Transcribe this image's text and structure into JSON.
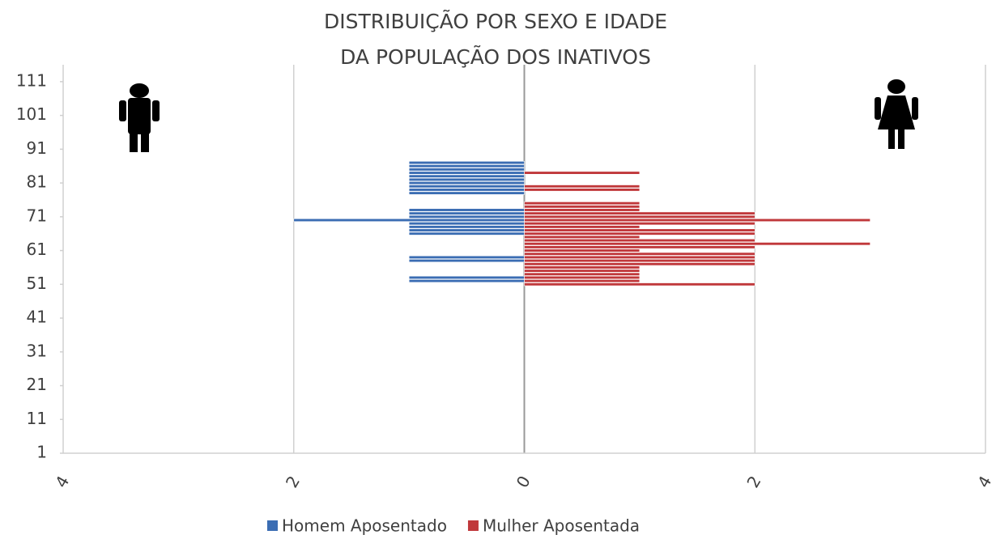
{
  "chart_data": {
    "type": "pyramid",
    "title": [
      "DISTRIBUIÇÃO  POR SEXO E IDADE",
      "DA POPULAÇÃO DOS INATIVOS"
    ],
    "xlim": [
      -4,
      4
    ],
    "xticks": [
      {
        "value": -4,
        "label": "4"
      },
      {
        "value": -2,
        "label": "2"
      },
      0,
      2,
      4
    ],
    "ylim": [
      1,
      116
    ],
    "yticks": [
      1,
      11,
      21,
      31,
      41,
      51,
      61,
      71,
      81,
      91,
      101,
      111
    ],
    "grid": true,
    "legend": "bottom",
    "series": [
      {
        "name": "Homem Aposentado",
        "color": "#3b6db3",
        "ages": [
          52,
          53,
          58,
          59,
          66,
          67,
          68,
          69,
          70,
          71,
          72,
          73,
          78,
          79,
          80,
          81,
          82,
          83,
          84,
          85,
          86,
          87
        ],
        "values": [
          -1,
          -1,
          -1,
          -1,
          -1,
          -1,
          -1,
          -1,
          -2,
          -1,
          -1,
          -1,
          -1,
          -1,
          -1,
          -1,
          -1,
          -1,
          -1,
          -1,
          -1,
          -1
        ]
      },
      {
        "name": "Mulher Aposentada",
        "color": "#c0383b",
        "ages": [
          51,
          52,
          53,
          54,
          55,
          56,
          57,
          58,
          59,
          60,
          61,
          62,
          63,
          64,
          65,
          66,
          67,
          68,
          69,
          70,
          71,
          72,
          73,
          74,
          75,
          79,
          80,
          84
        ],
        "values": [
          2,
          1,
          1,
          1,
          1,
          1,
          2,
          2,
          2,
          2,
          1,
          2,
          3,
          2,
          1,
          2,
          2,
          1,
          2,
          3,
          2,
          2,
          1,
          1,
          1,
          1,
          1,
          1
        ]
      }
    ]
  }
}
